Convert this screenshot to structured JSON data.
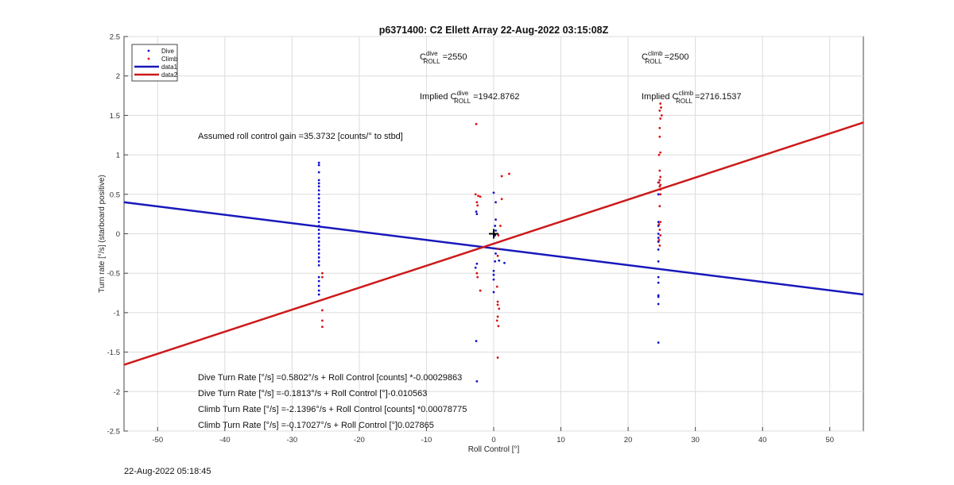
{
  "chart_data": {
    "type": "scatter",
    "title": "p6371400: C2 Ellett Array 22-Aug-2022 03:15:08Z",
    "xlabel": "Roll Control [°]",
    "ylabel": "Turn rate [°/s] (starboard positive)",
    "xlim": [
      -55,
      55
    ],
    "ylim": [
      -2.5,
      2.5
    ],
    "xticks": [
      -50,
      -40,
      -30,
      -20,
      -10,
      0,
      10,
      20,
      30,
      40,
      50
    ],
    "yticks": [
      -2.5,
      -2,
      -1.5,
      -1,
      -0.5,
      0,
      0.5,
      1,
      1.5,
      2,
      2.5
    ],
    "grid": true,
    "legend_position": "top-left",
    "colors": {
      "dive": "#1010cc",
      "climb": "#dd1111",
      "dive_line": "#1818bb",
      "climb_line": "#cc1a1a"
    },
    "series": [
      {
        "name": "Dive",
        "style": "dots",
        "points": [
          [
            -26,
            0.9
          ],
          [
            -26,
            0.87
          ],
          [
            -26,
            0.78
          ],
          [
            -26,
            0.68
          ],
          [
            -26,
            0.64
          ],
          [
            -26,
            0.6
          ],
          [
            -26,
            0.55
          ],
          [
            -26,
            0.5
          ],
          [
            -26,
            0.45
          ],
          [
            -26,
            0.4
          ],
          [
            -26,
            0.35
          ],
          [
            -26,
            0.3
          ],
          [
            -26,
            0.25
          ],
          [
            -26,
            0.2
          ],
          [
            -26,
            0.15
          ],
          [
            -26,
            0.1
          ],
          [
            -26,
            0.05
          ],
          [
            -26,
            0.0
          ],
          [
            -26,
            -0.05
          ],
          [
            -26,
            -0.1
          ],
          [
            -26,
            -0.15
          ],
          [
            -26,
            -0.2
          ],
          [
            -26,
            -0.25
          ],
          [
            -26,
            -0.3
          ],
          [
            -26,
            -0.35
          ],
          [
            -26,
            -0.4
          ],
          [
            -26,
            -0.55
          ],
          [
            -26,
            -0.6
          ],
          [
            -26,
            -0.66
          ],
          [
            -26,
            -0.72
          ],
          [
            -26,
            -0.77
          ],
          [
            -2.6,
            0.28
          ],
          [
            -2.5,
            0.25
          ],
          [
            -2.5,
            -0.38
          ],
          [
            -2.7,
            -0.43
          ],
          [
            -2.6,
            -1.36
          ],
          [
            -2.5,
            -1.87
          ],
          [
            0,
            0.52
          ],
          [
            0.3,
            0.4
          ],
          [
            0.3,
            0.18
          ],
          [
            0.2,
            0.1
          ],
          [
            0.3,
            0.04
          ],
          [
            0.2,
            -0.02
          ],
          [
            0.3,
            -0.25
          ],
          [
            0.2,
            -0.35
          ],
          [
            0,
            -0.47
          ],
          [
            0,
            -0.52
          ],
          [
            0,
            -0.58
          ],
          [
            0,
            -0.74
          ],
          [
            0.8,
            -0.34
          ],
          [
            1.6,
            -0.37
          ],
          [
            24.5,
            0.65
          ],
          [
            24.5,
            0.5
          ],
          [
            24.5,
            0.15
          ],
          [
            24.5,
            0.1
          ],
          [
            24.5,
            0.0
          ],
          [
            24.5,
            -0.05
          ],
          [
            24.5,
            -0.1
          ],
          [
            24.5,
            -0.2
          ],
          [
            24.5,
            -0.35
          ],
          [
            24.5,
            -0.55
          ],
          [
            24.5,
            -0.62
          ],
          [
            24.5,
            -0.78
          ],
          [
            24.5,
            -0.8
          ],
          [
            24.5,
            -0.89
          ],
          [
            24.5,
            -1.38
          ]
        ]
      },
      {
        "name": "Climb",
        "style": "dots",
        "points": [
          [
            -25.5,
            -0.5
          ],
          [
            -25.5,
            -0.55
          ],
          [
            -25.5,
            -0.97
          ],
          [
            -25.5,
            -1.1
          ],
          [
            -25.5,
            -1.18
          ],
          [
            -2.6,
            1.39
          ],
          [
            -2.7,
            0.5
          ],
          [
            -2.3,
            0.48
          ],
          [
            -2.0,
            0.47
          ],
          [
            -2.5,
            0.4
          ],
          [
            -2.4,
            0.36
          ],
          [
            -2.5,
            -0.5
          ],
          [
            -2.4,
            -0.55
          ],
          [
            -2.0,
            -0.72
          ],
          [
            0.7,
            -0.02
          ],
          [
            1.0,
            0.1
          ],
          [
            1.2,
            0.44
          ],
          [
            1.2,
            0.73
          ],
          [
            2.3,
            0.76
          ],
          [
            0.6,
            -0.19
          ],
          [
            0.6,
            -0.28
          ],
          [
            0.5,
            -0.67
          ],
          [
            0.6,
            -0.86
          ],
          [
            0.6,
            -0.9
          ],
          [
            0.8,
            -0.95
          ],
          [
            0.6,
            -1.05
          ],
          [
            0.5,
            -1.1
          ],
          [
            0.7,
            -1.17
          ],
          [
            0.6,
            -1.57
          ],
          [
            24.8,
            1.65
          ],
          [
            24.9,
            1.6
          ],
          [
            24.7,
            1.56
          ],
          [
            25.0,
            1.5
          ],
          [
            24.8,
            1.46
          ],
          [
            24.7,
            1.34
          ],
          [
            24.7,
            1.23
          ],
          [
            24.8,
            1.03
          ],
          [
            24.6,
            1.0
          ],
          [
            24.7,
            0.8
          ],
          [
            24.8,
            0.72
          ],
          [
            24.7,
            0.68
          ],
          [
            24.6,
            0.65
          ],
          [
            24.8,
            0.62
          ],
          [
            24.7,
            0.6
          ],
          [
            24.8,
            0.56
          ],
          [
            24.8,
            0.5
          ],
          [
            24.7,
            0.35
          ],
          [
            24.8,
            0.15
          ],
          [
            24.6,
            0.12
          ],
          [
            24.7,
            0.05
          ],
          [
            24.8,
            -0.02
          ],
          [
            24.6,
            -0.08
          ],
          [
            24.7,
            -0.15
          ]
        ]
      },
      {
        "name": "data1",
        "style": "line",
        "x": [
          -55,
          55
        ],
        "y": [
          0.4,
          -0.77
        ]
      },
      {
        "name": "data2",
        "style": "line",
        "x": [
          -55,
          55
        ],
        "y": [
          -1.66,
          1.41
        ]
      }
    ],
    "marker": {
      "symbol": "+",
      "x": 0,
      "y": 0
    },
    "annotations": {
      "c_dive": {
        "base": "C",
        "sup": "dive",
        "sub": "ROLL",
        "value": " =2550"
      },
      "c_climb": {
        "base": "C",
        "sup": "climb",
        "sub": "ROLL",
        "value": " =2500"
      },
      "implied_dive": {
        "prefix": "Implied C",
        "sup": "dive",
        "sub": "ROLL",
        "value": " =1942.8762"
      },
      "implied_climb": {
        "prefix": "Implied C",
        "sup": "climb",
        "sub": "ROLL",
        "value": " =2716.1537"
      },
      "roll_gain": "Assumed roll control gain =35.3732 [counts/° to stbd]",
      "equations": [
        "Dive Turn Rate [°/s] =0.5802°/s + Roll Control [counts] *-0.00029863",
        "Dive Turn Rate [°/s] =-0.1813°/s + Roll Control [°]-0.010563",
        "Climb Turn Rate [°/s] =-2.1396°/s + Roll Control [counts] *0.00078775",
        "Climb Turn Rate [°/s] =-0.17027°/s + Roll Control [°]0.027865"
      ]
    }
  },
  "footer": {
    "timestamp": "22-Aug-2022 05:18:45"
  }
}
